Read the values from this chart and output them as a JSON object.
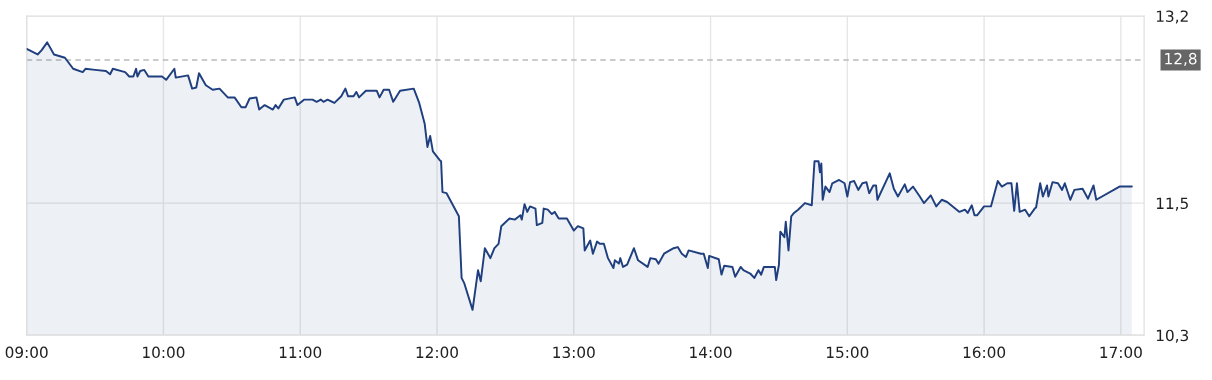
{
  "chart_data": {
    "type": "area",
    "x": [
      9.0,
      9.08,
      9.11,
      9.15,
      9.2,
      9.28,
      9.34,
      9.41,
      9.43,
      9.5,
      9.58,
      9.61,
      9.63,
      9.72,
      9.75,
      9.78,
      9.8,
      9.81,
      9.83,
      9.86,
      9.89,
      9.99,
      10.02,
      10.08,
      10.09,
      10.18,
      10.21,
      10.24,
      10.26,
      10.31,
      10.36,
      10.41,
      10.47,
      10.52,
      10.57,
      10.6,
      10.63,
      10.68,
      10.7,
      10.74,
      10.8,
      10.82,
      10.84,
      10.88,
      10.96,
      10.98,
      11.03,
      11.09,
      11.12,
      11.15,
      11.17,
      11.2,
      11.25,
      11.3,
      11.33,
      11.35,
      11.39,
      11.41,
      11.43,
      11.48,
      11.56,
      11.58,
      11.61,
      11.65,
      11.68,
      11.73,
      11.83,
      11.87,
      11.91,
      11.93,
      11.95,
      11.97,
      12.02,
      12.03,
      12.04,
      12.07,
      12.16,
      12.18,
      12.2,
      12.26,
      12.29,
      12.3,
      12.32,
      12.35,
      12.39,
      12.42,
      12.45,
      12.47,
      12.53,
      12.57,
      12.61,
      12.62,
      12.64,
      12.66,
      12.68,
      12.72,
      12.73,
      12.77,
      12.78,
      12.81,
      12.84,
      12.86,
      12.89,
      12.95,
      13.0,
      13.03,
      13.07,
      13.08,
      13.12,
      13.14,
      13.17,
      13.19,
      13.22,
      13.25,
      13.29,
      13.3,
      13.33,
      13.34,
      13.36,
      13.39,
      13.44,
      13.47,
      13.54,
      13.56,
      13.6,
      13.62,
      13.66,
      13.73,
      13.76,
      13.79,
      13.82,
      13.84,
      13.93,
      13.95,
      13.98,
      13.99,
      14.06,
      14.08,
      14.1,
      14.16,
      14.18,
      14.22,
      14.24,
      14.29,
      14.32,
      14.35,
      14.37,
      14.39,
      14.47,
      14.48,
      14.5,
      14.51,
      14.54,
      14.55,
      14.57,
      14.59,
      14.61,
      14.64,
      14.69,
      14.74,
      14.76,
      14.79,
      14.8,
      14.81,
      14.82,
      14.84,
      14.87,
      14.89,
      14.94,
      14.98,
      15.0,
      15.02,
      15.05,
      15.08,
      15.11,
      15.14,
      15.16,
      15.19,
      15.21,
      15.22,
      15.31,
      15.34,
      15.37,
      15.42,
      15.44,
      15.48,
      15.53,
      15.56,
      15.61,
      15.65,
      15.69,
      15.73,
      15.82,
      15.86,
      15.88,
      15.91,
      15.93,
      15.95,
      16.0,
      16.05,
      16.1,
      16.13,
      16.17,
      16.2,
      16.22,
      16.24,
      16.26,
      16.3,
      16.33,
      16.37,
      16.38,
      16.41,
      16.43,
      16.46,
      16.47,
      16.5,
      16.54,
      16.57,
      16.59,
      16.63,
      16.66,
      16.72,
      16.76,
      16.8,
      16.82,
      16.99,
      17.08
    ],
    "series": [
      {
        "color": "#1f3f7f",
        "values": [
          12.9,
          12.85,
          12.89,
          12.96,
          12.85,
          12.82,
          12.72,
          12.69,
          12.72,
          12.71,
          12.7,
          12.67,
          12.72,
          12.69,
          12.65,
          12.65,
          12.72,
          12.65,
          12.7,
          12.71,
          12.65,
          12.65,
          12.62,
          12.72,
          12.64,
          12.66,
          12.54,
          12.55,
          12.68,
          12.57,
          12.53,
          12.54,
          12.46,
          12.46,
          12.37,
          12.37,
          12.45,
          12.46,
          12.35,
          12.39,
          12.35,
          12.39,
          12.36,
          12.44,
          12.46,
          12.39,
          12.44,
          12.44,
          12.42,
          12.44,
          12.42,
          12.44,
          12.41,
          12.47,
          12.54,
          12.47,
          12.47,
          12.51,
          12.46,
          12.52,
          12.52,
          12.46,
          12.53,
          12.53,
          12.42,
          12.52,
          12.54,
          12.41,
          12.22,
          12.01,
          12.11,
          11.97,
          11.89,
          11.88,
          11.6,
          11.59,
          11.38,
          10.82,
          10.77,
          10.53,
          10.8,
          10.89,
          10.79,
          11.09,
          11.0,
          11.09,
          11.13,
          11.29,
          11.36,
          11.35,
          11.39,
          11.35,
          11.49,
          11.42,
          11.47,
          11.45,
          11.3,
          11.32,
          11.45,
          11.44,
          11.4,
          11.42,
          11.36,
          11.36,
          11.25,
          11.29,
          11.27,
          11.07,
          11.16,
          11.04,
          11.15,
          11.13,
          11.13,
          11.0,
          10.91,
          10.98,
          10.95,
          11.0,
          10.92,
          10.94,
          11.09,
          10.98,
          10.92,
          11.0,
          10.99,
          10.95,
          11.04,
          11.09,
          11.1,
          11.04,
          11.01,
          11.07,
          11.04,
          11.04,
          10.91,
          11.02,
          10.99,
          10.85,
          10.93,
          10.92,
          10.83,
          10.92,
          10.89,
          10.86,
          10.82,
          10.89,
          10.85,
          10.92,
          10.92,
          10.8,
          10.94,
          11.24,
          11.19,
          11.33,
          11.07,
          11.38,
          11.41,
          11.44,
          11.5,
          11.48,
          11.88,
          11.88,
          11.78,
          11.86,
          11.53,
          11.65,
          11.6,
          11.68,
          11.71,
          11.68,
          11.56,
          11.69,
          11.7,
          11.62,
          11.68,
          11.69,
          11.59,
          11.66,
          11.66,
          11.53,
          11.77,
          11.63,
          11.56,
          11.67,
          11.6,
          11.65,
          11.56,
          11.5,
          11.57,
          11.47,
          11.53,
          11.51,
          11.42,
          11.44,
          11.41,
          11.48,
          11.39,
          11.39,
          11.47,
          11.47,
          11.7,
          11.65,
          11.68,
          11.68,
          11.43,
          11.68,
          11.42,
          11.44,
          11.38,
          11.45,
          11.46,
          11.68,
          11.56,
          11.66,
          11.56,
          11.69,
          11.68,
          11.62,
          11.68,
          11.53,
          11.62,
          11.63,
          11.54,
          11.66,
          11.53,
          11.65,
          11.65
        ]
      }
    ],
    "xlim": [
      9.0,
      17.17
    ],
    "xticks": [
      {
        "value": 9,
        "label": "09:00"
      },
      {
        "value": 10,
        "label": "10:00"
      },
      {
        "value": 11,
        "label": "11:00"
      },
      {
        "value": 12,
        "label": "12:00"
      },
      {
        "value": 13,
        "label": "13:00"
      },
      {
        "value": 14,
        "label": "14:00"
      },
      {
        "value": 15,
        "label": "15:00"
      },
      {
        "value": 16,
        "label": "16:00"
      },
      {
        "value": 17,
        "label": "17:00"
      }
    ],
    "ylim": [
      10.3,
      13.2
    ],
    "yticks": [
      {
        "value": 10.3,
        "label": "10,3"
      },
      {
        "value": 11.5,
        "label": "11,5"
      },
      {
        "value": 13.2,
        "label": "13,2"
      }
    ],
    "ref_lines": [
      {
        "axis": "y",
        "value": 12.8,
        "label": "12,8",
        "color": "#bbbbbb",
        "line_style": "dashed"
      }
    ],
    "grid": true,
    "legend": false,
    "marker": "none",
    "line_style": "solid"
  }
}
